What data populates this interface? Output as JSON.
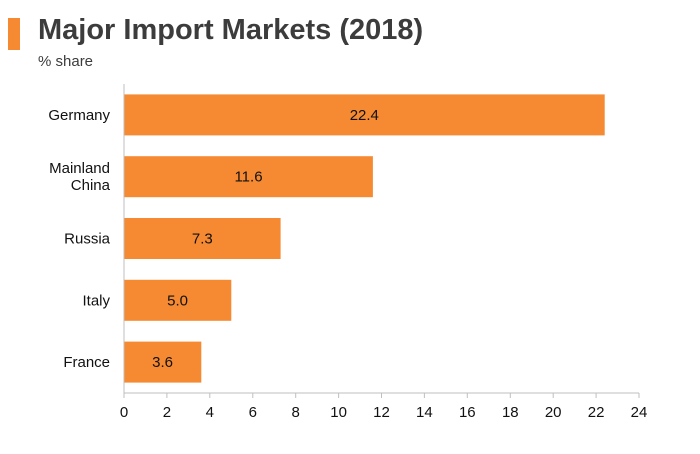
{
  "header": {
    "title": "Major Import Markets (2018)",
    "subtitle": "% share"
  },
  "colors": {
    "accent": "#f58a32",
    "bar": "#f58a32",
    "axis": "#bfbfbf",
    "text": "#3c3c3c"
  },
  "chart_data": {
    "type": "bar",
    "orientation": "horizontal",
    "title": "Major Import Markets (2018)",
    "subtitle": "% share",
    "categories": [
      [
        "Germany"
      ],
      [
        "Mainland",
        "China"
      ],
      [
        "Russia"
      ],
      [
        "Italy"
      ],
      [
        "France"
      ]
    ],
    "values": [
      22.4,
      11.6,
      7.3,
      5.0,
      3.6
    ],
    "value_labels": [
      "22.4",
      "11.6",
      "7.3",
      "5.0",
      "3.6"
    ],
    "xlim": [
      0,
      24
    ],
    "xticks": [
      0,
      2,
      4,
      6,
      8,
      10,
      12,
      14,
      16,
      18,
      20,
      22,
      24
    ],
    "grid": false,
    "legend": "none"
  }
}
